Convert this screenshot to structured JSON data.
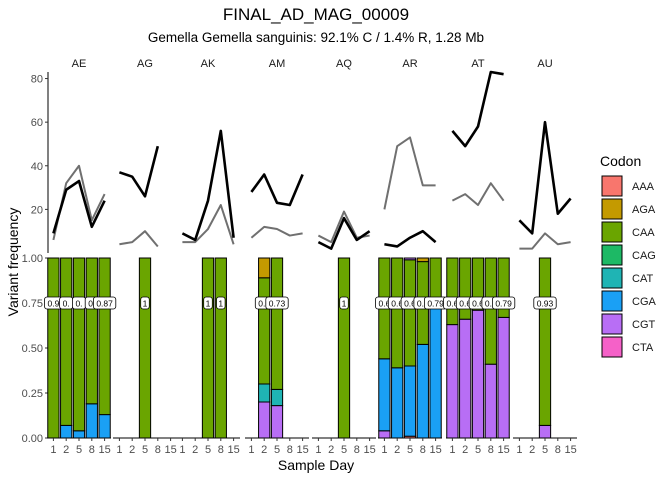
{
  "chart_data": {
    "type": "bar",
    "title": "FINAL_AD_MAG_00009",
    "subtitle": "Gemella Gemella sanguinis: 92.1% C / 1.4% R, 1.28 Mb",
    "xlabel": "Sample Day",
    "ylabel": "Variant frequency",
    "days": [
      1,
      2,
      5,
      8,
      15
    ],
    "line_ylim": [
      0,
      83
    ],
    "line_yticks": [
      20,
      40,
      60,
      80
    ],
    "bar_ylim": [
      0,
      1
    ],
    "bar_yticks": [
      "0.00",
      "0.25",
      "0.50",
      "0.75",
      "1.00"
    ],
    "legend": {
      "title": "Codon",
      "position": "right",
      "entries": [
        {
          "name": "AAA",
          "color": "#F8766D"
        },
        {
          "name": "AGA",
          "color": "#C49A00"
        },
        {
          "name": "CAA",
          "color": "#6AA500"
        },
        {
          "name": "CAG",
          "color": "#1DB965"
        },
        {
          "name": "CAT",
          "color": "#1FB4B4"
        },
        {
          "name": "CGA",
          "color": "#1AA0F5"
        },
        {
          "name": "CGT",
          "color": "#B86EF5"
        },
        {
          "name": "CTA",
          "color": "#F561C8"
        }
      ]
    },
    "line_series_colors": {
      "black": "#000000",
      "gray": "#707070"
    },
    "panels": [
      {
        "name": "AE",
        "black": [
          [
            1,
            9
          ],
          [
            2,
            29
          ],
          [
            5,
            33
          ],
          [
            8,
            12
          ],
          [
            15,
            24
          ]
        ],
        "gray": [
          [
            1,
            6
          ],
          [
            2,
            32
          ],
          [
            5,
            40
          ],
          [
            8,
            15
          ],
          [
            15,
            27
          ]
        ],
        "bars": [
          {
            "day": 1,
            "segs": [
              [
                0,
                1.0,
                "CAA"
              ]
            ],
            "label": "0.9"
          },
          {
            "day": 2,
            "segs": [
              [
                0,
                0.07,
                "CGA"
              ],
              [
                0.07,
                1.0,
                "CAA"
              ]
            ],
            "label": "0."
          },
          {
            "day": 5,
            "segs": [
              [
                0,
                0.04,
                "CGA"
              ],
              [
                0.04,
                1.0,
                "CAA"
              ]
            ],
            "label": "0."
          },
          {
            "day": 8,
            "segs": [
              [
                0,
                0.19,
                "CGA"
              ],
              [
                0.19,
                1.0,
                "CAA"
              ]
            ],
            "label": "0."
          },
          {
            "day": 15,
            "segs": [
              [
                0,
                0.13,
                "CGA"
              ],
              [
                0.13,
                1.0,
                "CAA"
              ]
            ],
            "label": "0.87"
          }
        ]
      },
      {
        "name": "AG",
        "black": [
          [
            1,
            37
          ],
          [
            2,
            35
          ],
          [
            5,
            26
          ],
          [
            8,
            49
          ]
        ],
        "gray": [
          [
            1,
            4
          ],
          [
            2,
            5
          ],
          [
            5,
            10
          ],
          [
            8,
            3
          ]
        ],
        "bars": [
          {
            "day": 5,
            "segs": [
              [
                0,
                1.0,
                "CAA"
              ]
            ],
            "label": "1"
          }
        ]
      },
      {
        "name": "AK",
        "black": [
          [
            1,
            9
          ],
          [
            2,
            6
          ],
          [
            5,
            24
          ],
          [
            8,
            56
          ],
          [
            15,
            7
          ]
        ],
        "gray": [
          [
            1,
            5
          ],
          [
            2,
            5
          ],
          [
            5,
            11
          ],
          [
            8,
            22
          ],
          [
            15,
            4
          ]
        ],
        "bars": [
          {
            "day": 5,
            "segs": [
              [
                0,
                1.0,
                "CAA"
              ]
            ],
            "label": "1"
          },
          {
            "day": 8,
            "segs": [
              [
                0,
                1.0,
                "CAA"
              ]
            ],
            "label": "1"
          }
        ]
      },
      {
        "name": "AM",
        "black": [
          [
            1,
            28
          ],
          [
            2,
            36
          ],
          [
            5,
            23
          ],
          [
            8,
            22
          ],
          [
            15,
            36
          ]
        ],
        "gray": [
          [
            1,
            7
          ],
          [
            2,
            12
          ],
          [
            5,
            11
          ],
          [
            8,
            8
          ],
          [
            15,
            9
          ]
        ],
        "bars": [
          {
            "day": 2,
            "segs": [
              [
                0,
                0.2,
                "CGT"
              ],
              [
                0.2,
                0.3,
                "CAT"
              ],
              [
                0.3,
                0.89,
                "CAA"
              ],
              [
                0.89,
                1.0,
                "AGA"
              ]
            ],
            "label": "0.6"
          },
          {
            "day": 5,
            "segs": [
              [
                0,
                0.18,
                "CGT"
              ],
              [
                0.18,
                0.27,
                "CAT"
              ],
              [
                0.27,
                1.0,
                "CAA"
              ]
            ],
            "label": "0.73"
          }
        ]
      },
      {
        "name": "AQ",
        "black": [
          [
            1,
            5
          ],
          [
            2,
            2
          ],
          [
            5,
            16
          ],
          [
            8,
            6
          ],
          [
            15,
            10
          ]
        ],
        "gray": [
          [
            1,
            8
          ],
          [
            2,
            5
          ],
          [
            5,
            19
          ],
          [
            8,
            7
          ],
          [
            15,
            8
          ]
        ],
        "bars": [
          {
            "day": 5,
            "segs": [
              [
                0,
                1.0,
                "CAA"
              ]
            ],
            "label": "1"
          }
        ]
      },
      {
        "name": "AR",
        "black": [
          [
            1,
            4
          ],
          [
            2,
            3
          ],
          [
            5,
            7
          ],
          [
            8,
            10
          ],
          [
            15,
            5
          ]
        ],
        "gray": [
          [
            1,
            20
          ],
          [
            2,
            49
          ],
          [
            5,
            53
          ],
          [
            8,
            31
          ],
          [
            15,
            31
          ]
        ],
        "bars": [
          {
            "day": 1,
            "segs": [
              [
                0,
                0.04,
                "CGT"
              ],
              [
                0.04,
                0.44,
                "CGA"
              ],
              [
                0.44,
                1.0,
                "CAA"
              ]
            ],
            "label": "0.6"
          },
          {
            "day": 2,
            "segs": [
              [
                0,
                0.39,
                "CGA"
              ],
              [
                0.39,
                1.0,
                "CAA"
              ]
            ],
            "label": "0.6"
          },
          {
            "day": 5,
            "segs": [
              [
                0,
                0.01,
                "AAA"
              ],
              [
                0.01,
                0.4,
                "CGA"
              ],
              [
                0.4,
                0.99,
                "CAA"
              ],
              [
                0.99,
                1.0,
                "CGT"
              ]
            ],
            "label": "0.6"
          },
          {
            "day": 8,
            "segs": [
              [
                0,
                0.52,
                "CGA"
              ],
              [
                0.52,
                0.98,
                "CAA"
              ],
              [
                0.98,
                1.0,
                "AGA"
              ]
            ],
            "label": "0.5"
          },
          {
            "day": 15,
            "segs": [
              [
                0,
                0.72,
                "CGA"
              ],
              [
                0.72,
                1.0,
                "CAA"
              ]
            ],
            "label": "0.79"
          }
        ]
      },
      {
        "name": "AT",
        "black": [
          [
            1,
            56
          ],
          [
            2,
            49
          ],
          [
            5,
            58
          ],
          [
            8,
            83
          ],
          [
            15,
            82
          ]
        ],
        "gray": [
          [
            1,
            24
          ],
          [
            2,
            27
          ],
          [
            5,
            22
          ],
          [
            8,
            32
          ],
          [
            15,
            24
          ]
        ],
        "bars": [
          {
            "day": 1,
            "segs": [
              [
                0,
                0.63,
                "CGT"
              ],
              [
                0.63,
                1.0,
                "CAA"
              ]
            ],
            "label": "0.6"
          },
          {
            "day": 2,
            "segs": [
              [
                0,
                0.66,
                "CGT"
              ],
              [
                0.66,
                1.0,
                "CAA"
              ]
            ],
            "label": "0.6"
          },
          {
            "day": 5,
            "segs": [
              [
                0,
                0.71,
                "CGT"
              ],
              [
                0.71,
                1.0,
                "CAA"
              ]
            ],
            "label": "0.6"
          },
          {
            "day": 8,
            "segs": [
              [
                0,
                0.41,
                "CGT"
              ],
              [
                0.41,
                1.0,
                "CAA"
              ]
            ],
            "label": "0.7"
          },
          {
            "day": 15,
            "segs": [
              [
                0,
                0.67,
                "CGT"
              ],
              [
                0.67,
                1.0,
                "CAA"
              ]
            ],
            "label": "0.79"
          }
        ]
      },
      {
        "name": "AU",
        "black": [
          [
            1,
            15
          ],
          [
            2,
            9
          ],
          [
            5,
            60
          ],
          [
            8,
            18
          ],
          [
            15,
            25
          ]
        ],
        "gray": [
          [
            1,
            2
          ],
          [
            2,
            2
          ],
          [
            5,
            9
          ],
          [
            8,
            4
          ],
          [
            15,
            5
          ]
        ],
        "bars": [
          {
            "day": 5,
            "segs": [
              [
                0,
                0.07,
                "CGT"
              ],
              [
                0.07,
                1.0,
                "CAA"
              ]
            ],
            "label": "0.93"
          }
        ]
      }
    ]
  }
}
